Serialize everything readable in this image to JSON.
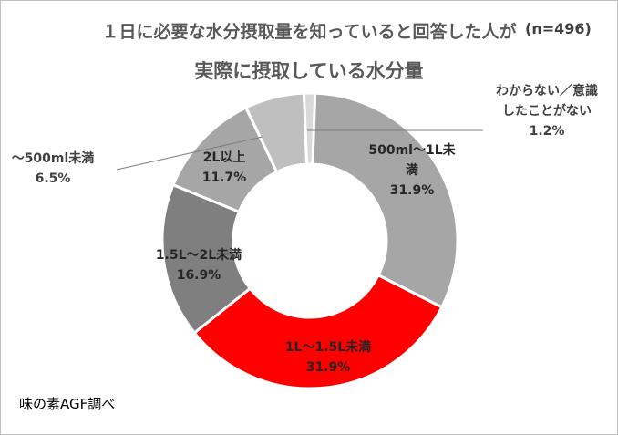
{
  "title_line1": "１日に必要な水分摂取量を知っていると回答した人が",
  "title_n": "(n=496)",
  "title_line2": "実際に摂取している水分量",
  "source": "味の素AGF調べ",
  "chart_data": {
    "type": "pie",
    "variant": "donut",
    "title": "１日に必要な水分摂取量を知っていると回答した人が 実際に摂取している水分量",
    "n": 496,
    "unit": "%",
    "slices": [
      {
        "label_lines": [
          "500ml～1L未",
          "満"
        ],
        "value": 31.9,
        "value_text": "31.9%",
        "color": "#a6a6a6",
        "text_color": "#262626"
      },
      {
        "label_lines": [
          "1L～1.5L未満"
        ],
        "value": 31.9,
        "value_text": "31.9%",
        "color": "#ff0000",
        "text_color": "#262626"
      },
      {
        "label_lines": [
          "1.5L～2L未満"
        ],
        "value": 16.9,
        "value_text": "16.9%",
        "color": "#7f7f7f",
        "text_color": "#262626"
      },
      {
        "label_lines": [
          "2L以上"
        ],
        "value": 11.7,
        "value_text": "11.7%",
        "color": "#a6a6a6",
        "text_color": "#262626"
      },
      {
        "label_lines": [
          "～500ml未満"
        ],
        "value": 6.5,
        "value_text": "6.5%",
        "color": "#bfbfbf",
        "text_color": "#404040"
      },
      {
        "label_lines": [
          "わからない／意識",
          "したことがない"
        ],
        "value": 1.2,
        "value_text": "1.2%",
        "color": "#d9d9d9",
        "text_color": "#404040"
      }
    ]
  }
}
